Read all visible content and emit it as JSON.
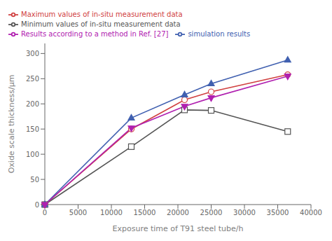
{
  "chart_data": {
    "type": "line",
    "x_label": "Exposure time of T91 steel tube/h",
    "y_label": "Oxide scale thickness/μm",
    "x": [
      0,
      13000,
      21000,
      25000,
      36500
    ],
    "series": [
      {
        "name": "Minimum values of in-situ measurement data",
        "color": "#555555",
        "marker": "square-open",
        "line_style": "solid",
        "values": [
          0,
          115,
          188,
          187,
          145
        ]
      },
      {
        "name": "Maximum values of in-situ measurement data",
        "color": "#d04040",
        "marker": "circle-open",
        "line_style": "solid",
        "values": [
          0,
          150,
          208,
          224,
          258
        ]
      },
      {
        "name": "simulation results",
        "color": "#4060b0",
        "marker": "triangle-up",
        "line_style": "solid",
        "values": [
          0,
          172,
          218,
          240,
          287
        ]
      },
      {
        "name": "Results according to a method in Ref. [27]",
        "color": "#b020b0",
        "marker": "triangle-down",
        "line_style": "solid",
        "values": [
          0,
          152,
          195,
          212,
          255
        ]
      }
    ],
    "xlim": [
      0,
      40000
    ],
    "xticks": [
      0,
      5000,
      10000,
      15000,
      20000,
      25000,
      30000,
      35000,
      40000
    ],
    "ylim": [
      0,
      320
    ],
    "yticks": [
      0,
      50,
      100,
      150,
      200,
      250,
      300
    ],
    "grid": false,
    "legend": "upper left"
  }
}
